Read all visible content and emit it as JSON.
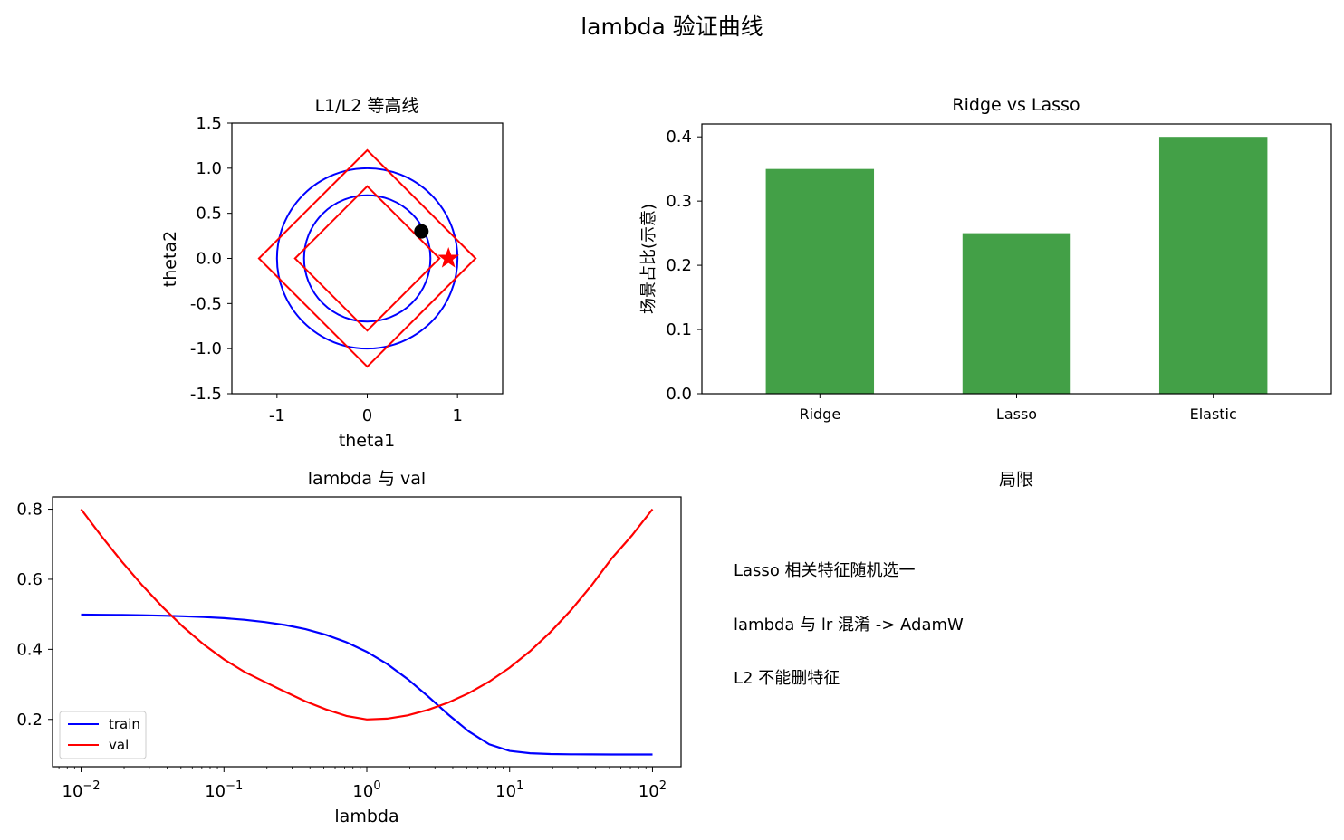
{
  "suptitle": "lambda 验证曲线",
  "chart_data": [
    {
      "type": "line",
      "title": "L1/L2 等高线",
      "xlabel": "theta1",
      "ylabel": "theta2",
      "xlim": [
        -1.5,
        1.5
      ],
      "ylim": [
        -1.5,
        1.5
      ],
      "xticks": [
        -1,
        0,
        1
      ],
      "xtick_labels": [
        "-1",
        "0",
        "1"
      ],
      "yticks": [
        -1.5,
        -1.0,
        -0.5,
        0.0,
        0.5,
        1.0,
        1.5
      ],
      "ytick_labels": [
        "-1.5",
        "-1.0",
        "-0.5",
        "0.0",
        "0.5",
        "1.0",
        "1.5"
      ],
      "circles": [
        {
          "radius": 1.0,
          "color": "#0000ff"
        },
        {
          "radius": 0.7,
          "color": "#0000ff"
        }
      ],
      "diamonds": [
        {
          "radius": 1.2,
          "color": "#ff0000"
        },
        {
          "radius": 0.8,
          "color": "#ff0000"
        }
      ],
      "markers": [
        {
          "name": "dot",
          "x": 0.6,
          "y": 0.3,
          "color": "#000000"
        },
        {
          "name": "star",
          "x": 0.9,
          "y": 0.0,
          "color": "#ff0000"
        }
      ]
    },
    {
      "type": "bar",
      "title": "Ridge vs Lasso",
      "ylabel": "场景占比(示意)",
      "categories": [
        "Ridge",
        "Lasso",
        "Elastic"
      ],
      "values": [
        0.35,
        0.25,
        0.4
      ],
      "ylim": [
        0,
        0.42
      ],
      "yticks": [
        0.0,
        0.1,
        0.2,
        0.3,
        0.4
      ],
      "ytick_labels": [
        "0.0",
        "0.1",
        "0.2",
        "0.3",
        "0.4"
      ],
      "color": "#43a047"
    },
    {
      "type": "line",
      "title": "lambda 与 val",
      "xlabel": "lambda",
      "x_scale": "log",
      "xlim_log10": [
        -2.2,
        2.2
      ],
      "ylim": [
        0.065,
        0.835
      ],
      "yticks": [
        0.2,
        0.4,
        0.6,
        0.8
      ],
      "ytick_labels": [
        "0.2",
        "0.4",
        "0.6",
        "0.8"
      ],
      "xticks_log10": [
        -2,
        -1,
        0,
        1,
        2
      ],
      "xtick_labels": [
        "−2",
        "−1",
        "0",
        "1",
        "2"
      ],
      "xtick_base": "10",
      "legend": "lower-left",
      "x": [
        0.01,
        0.01389,
        0.01931,
        0.02683,
        0.03728,
        0.05179,
        0.07197,
        0.1,
        0.13895,
        0.19307,
        0.26827,
        0.37276,
        0.51795,
        0.71969,
        1.0,
        1.3895,
        1.9307,
        2.6827,
        3.72759,
        5.17947,
        7.19686,
        10.0,
        13.895,
        19.307,
        26.827,
        37.2759,
        51.7947,
        71.9686,
        100.0
      ],
      "series": [
        {
          "name": "train",
          "color": "#0000ff",
          "values": [
            0.499,
            0.4986,
            0.4981,
            0.4973,
            0.4961,
            0.4945,
            0.4921,
            0.4889,
            0.4843,
            0.4779,
            0.4693,
            0.4574,
            0.4415,
            0.4204,
            0.3929,
            0.358,
            0.3152,
            0.2658,
            0.2136,
            0.1656,
            0.1288,
            0.1099,
            0.1034,
            0.1011,
            0.1004,
            0.1001,
            0.1,
            0.1,
            0.1
          ]
        },
        {
          "name": "val",
          "color": "#ff0000",
          "values": [
            0.8,
            0.7228,
            0.65,
            0.5824,
            0.5204,
            0.4643,
            0.4143,
            0.3714,
            0.3357,
            0.3071,
            0.2786,
            0.2514,
            0.2286,
            0.21,
            0.2,
            0.2021,
            0.2116,
            0.2273,
            0.2482,
            0.275,
            0.308,
            0.3477,
            0.3946,
            0.4491,
            0.5113,
            0.5814,
            0.6594,
            0.7255,
            0.8
          ]
        }
      ]
    }
  ],
  "notes_panel": {
    "title": "局限",
    "items": [
      "Lasso 相关特征随机选一",
      "lambda 与 lr 混淆 -> AdamW",
      "L2 不能删特征"
    ]
  }
}
